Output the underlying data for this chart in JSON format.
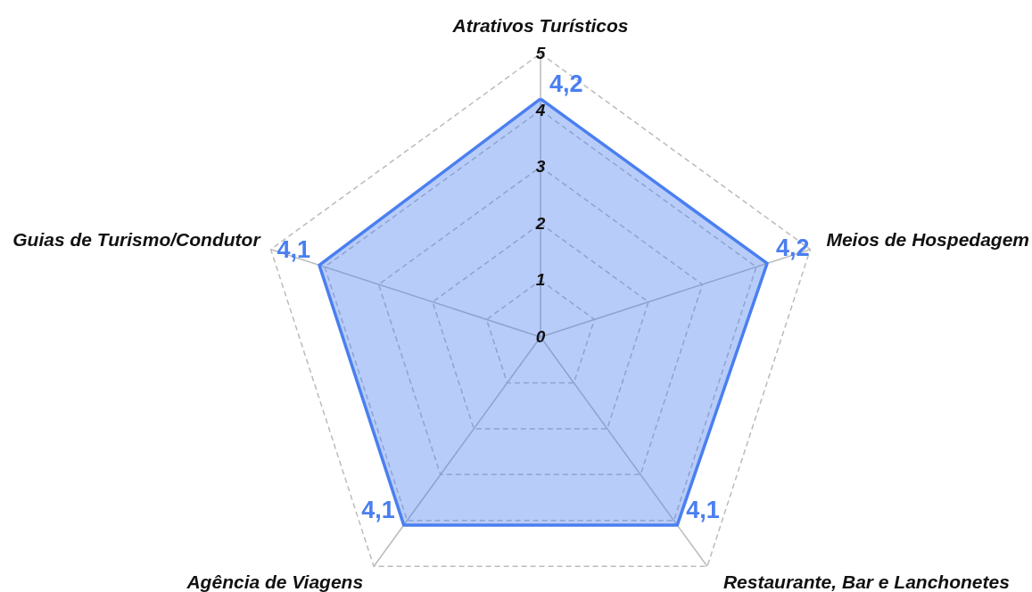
{
  "chart_data": {
    "type": "radar",
    "categories": [
      "Atrativos Turísticos",
      "Meios de Hospedagem",
      "Restaurante, Bar e Lanchonetes",
      "Agência de Viagens",
      "Guias de Turismo/Condutor"
    ],
    "series": [
      {
        "color": "#4a7ff0",
        "values": [
          4.2,
          4.2,
          4.1,
          4.1,
          4.1
        ],
        "value_labels": [
          "4,2",
          "4,2",
          "4,1",
          "4,1",
          "4,1"
        ]
      }
    ],
    "ylim": [
      0,
      5
    ],
    "yticks": [
      0,
      1,
      2,
      3,
      4,
      5
    ],
    "grid": true
  }
}
